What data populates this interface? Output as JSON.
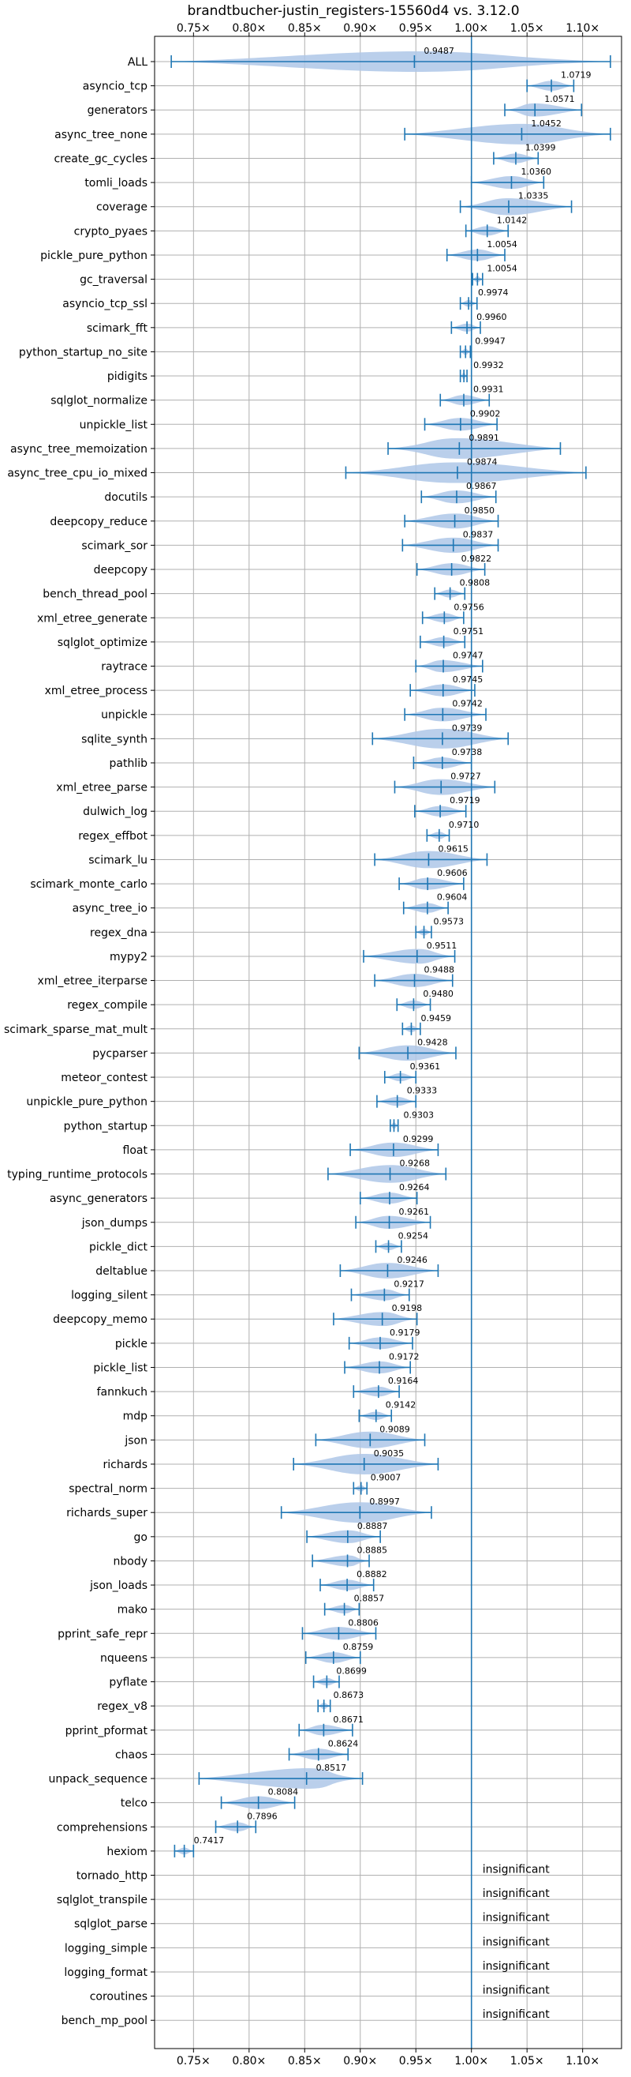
{
  "chart_data": {
    "type": "violin",
    "title": "brandtbucher-justin_registers-15560d4 vs. 3.12.0",
    "xlim": [
      0.715,
      1.135
    ],
    "x_ticks": [
      0.75,
      0.8,
      0.85,
      0.9,
      0.95,
      1.0,
      1.05,
      1.1
    ],
    "x_tick_labels": [
      "0.75×",
      "0.80×",
      "0.85×",
      "0.90×",
      "0.95×",
      "1.00×",
      "1.05×",
      "1.10×"
    ],
    "reference_line": 1.0,
    "grid": true,
    "colors": {
      "accent": "#1f77b4",
      "violin": "#aec7e8",
      "grid": "#b0b0b0"
    },
    "insignificant_text": "insignificant",
    "benchmarks": [
      {
        "name": "ALL",
        "value": 0.9487,
        "min": 0.73,
        "max": 1.125,
        "label": "0.9487"
      },
      {
        "name": "asyncio_tcp",
        "value": 1.0719,
        "min": 1.05,
        "max": 1.092,
        "label": "1.0719"
      },
      {
        "name": "generators",
        "value": 1.0571,
        "min": 1.03,
        "max": 1.099,
        "label": "1.0571"
      },
      {
        "name": "async_tree_none",
        "value": 1.0452,
        "min": 0.94,
        "max": 1.125,
        "label": "1.0452"
      },
      {
        "name": "create_gc_cycles",
        "value": 1.0399,
        "min": 1.02,
        "max": 1.06,
        "label": "1.0399"
      },
      {
        "name": "tomli_loads",
        "value": 1.036,
        "min": 1.0,
        "max": 1.065,
        "label": "1.0360"
      },
      {
        "name": "coverage",
        "value": 1.0335,
        "min": 0.99,
        "max": 1.09,
        "label": "1.0335"
      },
      {
        "name": "crypto_pyaes",
        "value": 1.0142,
        "min": 0.995,
        "max": 1.033,
        "label": "1.0142"
      },
      {
        "name": "pickle_pure_python",
        "value": 1.0054,
        "min": 0.978,
        "max": 1.03,
        "label": "1.0054"
      },
      {
        "name": "gc_traversal",
        "value": 1.0054,
        "min": 1.001,
        "max": 1.01,
        "label": "1.0054"
      },
      {
        "name": "asyncio_tcp_ssl",
        "value": 0.9974,
        "min": 0.99,
        "max": 1.005,
        "label": "0.9974"
      },
      {
        "name": "scimark_fft",
        "value": 0.996,
        "min": 0.982,
        "max": 1.008,
        "label": "0.9960"
      },
      {
        "name": "python_startup_no_site",
        "value": 0.9947,
        "min": 0.99,
        "max": 0.999,
        "label": "0.9947"
      },
      {
        "name": "pidigits",
        "value": 0.9932,
        "min": 0.99,
        "max": 0.996,
        "label": "0.9932"
      },
      {
        "name": "sqlglot_normalize",
        "value": 0.9931,
        "min": 0.972,
        "max": 1.016,
        "label": "0.9931"
      },
      {
        "name": "unpickle_list",
        "value": 0.9902,
        "min": 0.958,
        "max": 1.023,
        "label": "0.9902"
      },
      {
        "name": "async_tree_memoization",
        "value": 0.9891,
        "min": 0.925,
        "max": 1.08,
        "label": "0.9891"
      },
      {
        "name": "async_tree_cpu_io_mixed",
        "value": 0.9874,
        "min": 0.887,
        "max": 1.103,
        "label": "0.9874"
      },
      {
        "name": "docutils",
        "value": 0.9867,
        "min": 0.955,
        "max": 1.022,
        "label": "0.9867"
      },
      {
        "name": "deepcopy_reduce",
        "value": 0.985,
        "min": 0.94,
        "max": 1.024,
        "label": "0.9850"
      },
      {
        "name": "scimark_sor",
        "value": 0.9837,
        "min": 0.938,
        "max": 1.024,
        "label": "0.9837"
      },
      {
        "name": "deepcopy",
        "value": 0.9822,
        "min": 0.951,
        "max": 1.012,
        "label": "0.9822"
      },
      {
        "name": "bench_thread_pool",
        "value": 0.9808,
        "min": 0.967,
        "max": 0.994,
        "label": "0.9808"
      },
      {
        "name": "xml_etree_generate",
        "value": 0.9756,
        "min": 0.956,
        "max": 0.993,
        "label": "0.9756"
      },
      {
        "name": "sqlglot_optimize",
        "value": 0.9751,
        "min": 0.954,
        "max": 0.994,
        "label": "0.9751"
      },
      {
        "name": "raytrace",
        "value": 0.9747,
        "min": 0.95,
        "max": 1.01,
        "label": "0.9747"
      },
      {
        "name": "xml_etree_process",
        "value": 0.9745,
        "min": 0.945,
        "max": 1.003,
        "label": "0.9745"
      },
      {
        "name": "unpickle",
        "value": 0.9742,
        "min": 0.94,
        "max": 1.013,
        "label": "0.9742"
      },
      {
        "name": "sqlite_synth",
        "value": 0.9739,
        "min": 0.911,
        "max": 1.033,
        "label": "0.9739"
      },
      {
        "name": "pathlib",
        "value": 0.9738,
        "min": 0.948,
        "max": 1.0,
        "label": "0.9738"
      },
      {
        "name": "xml_etree_parse",
        "value": 0.9727,
        "min": 0.931,
        "max": 1.021,
        "label": "0.9727"
      },
      {
        "name": "dulwich_log",
        "value": 0.9719,
        "min": 0.949,
        "max": 0.995,
        "label": "0.9719"
      },
      {
        "name": "regex_effbot",
        "value": 0.971,
        "min": 0.96,
        "max": 0.98,
        "label": "0.9710"
      },
      {
        "name": "scimark_lu",
        "value": 0.9615,
        "min": 0.913,
        "max": 1.014,
        "label": "0.9615"
      },
      {
        "name": "scimark_monte_carlo",
        "value": 0.9606,
        "min": 0.935,
        "max": 0.993,
        "label": "0.9606"
      },
      {
        "name": "async_tree_io",
        "value": 0.9604,
        "min": 0.939,
        "max": 0.979,
        "label": "0.9604"
      },
      {
        "name": "regex_dna",
        "value": 0.9573,
        "min": 0.95,
        "max": 0.964,
        "label": "0.9573"
      },
      {
        "name": "mypy2",
        "value": 0.9511,
        "min": 0.903,
        "max": 0.985,
        "label": "0.9511"
      },
      {
        "name": "xml_etree_iterparse",
        "value": 0.9488,
        "min": 0.913,
        "max": 0.983,
        "label": "0.9488"
      },
      {
        "name": "regex_compile",
        "value": 0.948,
        "min": 0.933,
        "max": 0.963,
        "label": "0.9480"
      },
      {
        "name": "scimark_sparse_mat_mult",
        "value": 0.9459,
        "min": 0.938,
        "max": 0.954,
        "label": "0.9459"
      },
      {
        "name": "pycparser",
        "value": 0.9428,
        "min": 0.899,
        "max": 0.986,
        "label": "0.9428"
      },
      {
        "name": "meteor_contest",
        "value": 0.9361,
        "min": 0.922,
        "max": 0.95,
        "label": "0.9361"
      },
      {
        "name": "unpickle_pure_python",
        "value": 0.9333,
        "min": 0.915,
        "max": 0.95,
        "label": "0.9333"
      },
      {
        "name": "python_startup",
        "value": 0.9303,
        "min": 0.927,
        "max": 0.934,
        "label": "0.9303"
      },
      {
        "name": "float",
        "value": 0.9299,
        "min": 0.891,
        "max": 0.97,
        "label": "0.9299"
      },
      {
        "name": "typing_runtime_protocols",
        "value": 0.9268,
        "min": 0.871,
        "max": 0.977,
        "label": "0.9268"
      },
      {
        "name": "async_generators",
        "value": 0.9264,
        "min": 0.9,
        "max": 0.951,
        "label": "0.9264"
      },
      {
        "name": "json_dumps",
        "value": 0.9261,
        "min": 0.896,
        "max": 0.963,
        "label": "0.9261"
      },
      {
        "name": "pickle_dict",
        "value": 0.9254,
        "min": 0.914,
        "max": 0.937,
        "label": "0.9254"
      },
      {
        "name": "deltablue",
        "value": 0.9246,
        "min": 0.882,
        "max": 0.97,
        "label": "0.9246"
      },
      {
        "name": "logging_silent",
        "value": 0.9217,
        "min": 0.892,
        "max": 0.944,
        "label": "0.9217"
      },
      {
        "name": "deepcopy_memo",
        "value": 0.9198,
        "min": 0.876,
        "max": 0.951,
        "label": "0.9198"
      },
      {
        "name": "pickle",
        "value": 0.9179,
        "min": 0.89,
        "max": 0.947,
        "label": "0.9179"
      },
      {
        "name": "pickle_list",
        "value": 0.9172,
        "min": 0.886,
        "max": 0.945,
        "label": "0.9172"
      },
      {
        "name": "fannkuch",
        "value": 0.9164,
        "min": 0.894,
        "max": 0.935,
        "label": "0.9164"
      },
      {
        "name": "mdp",
        "value": 0.9142,
        "min": 0.899,
        "max": 0.928,
        "label": "0.9142"
      },
      {
        "name": "json",
        "value": 0.9089,
        "min": 0.86,
        "max": 0.958,
        "label": "0.9089"
      },
      {
        "name": "richards",
        "value": 0.9035,
        "min": 0.84,
        "max": 0.97,
        "label": "0.9035"
      },
      {
        "name": "spectral_norm",
        "value": 0.9007,
        "min": 0.894,
        "max": 0.906,
        "label": "0.9007"
      },
      {
        "name": "richards_super",
        "value": 0.8997,
        "min": 0.829,
        "max": 0.964,
        "label": "0.8997"
      },
      {
        "name": "go",
        "value": 0.8887,
        "min": 0.852,
        "max": 0.918,
        "label": "0.8887"
      },
      {
        "name": "nbody",
        "value": 0.8885,
        "min": 0.857,
        "max": 0.908,
        "label": "0.8885"
      },
      {
        "name": "json_loads",
        "value": 0.8882,
        "min": 0.864,
        "max": 0.912,
        "label": "0.8882"
      },
      {
        "name": "mako",
        "value": 0.8857,
        "min": 0.868,
        "max": 0.899,
        "label": "0.8857"
      },
      {
        "name": "pprint_safe_repr",
        "value": 0.8806,
        "min": 0.848,
        "max": 0.914,
        "label": "0.8806"
      },
      {
        "name": "nqueens",
        "value": 0.8759,
        "min": 0.851,
        "max": 0.9,
        "label": "0.8759"
      },
      {
        "name": "pyflate",
        "value": 0.8699,
        "min": 0.858,
        "max": 0.881,
        "label": "0.8699"
      },
      {
        "name": "regex_v8",
        "value": 0.8673,
        "min": 0.862,
        "max": 0.873,
        "label": "0.8673"
      },
      {
        "name": "pprint_pformat",
        "value": 0.8671,
        "min": 0.845,
        "max": 0.893,
        "label": "0.8671"
      },
      {
        "name": "chaos",
        "value": 0.8624,
        "min": 0.836,
        "max": 0.889,
        "label": "0.8624"
      },
      {
        "name": "unpack_sequence",
        "value": 0.8517,
        "min": 0.755,
        "max": 0.902,
        "label": "0.8517"
      },
      {
        "name": "telco",
        "value": 0.8084,
        "min": 0.775,
        "max": 0.841,
        "label": "0.8084"
      },
      {
        "name": "comprehensions",
        "value": 0.7896,
        "min": 0.77,
        "max": 0.806,
        "label": "0.7896"
      },
      {
        "name": "hexiom",
        "value": 0.7417,
        "min": 0.733,
        "max": 0.75,
        "label": "0.7417"
      },
      {
        "name": "tornado_http",
        "insignificant": true
      },
      {
        "name": "sqlglot_transpile",
        "insignificant": true
      },
      {
        "name": "sqlglot_parse",
        "insignificant": true
      },
      {
        "name": "logging_simple",
        "insignificant": true
      },
      {
        "name": "logging_format",
        "insignificant": true
      },
      {
        "name": "coroutines",
        "insignificant": true
      },
      {
        "name": "bench_mp_pool",
        "insignificant": true
      }
    ]
  }
}
